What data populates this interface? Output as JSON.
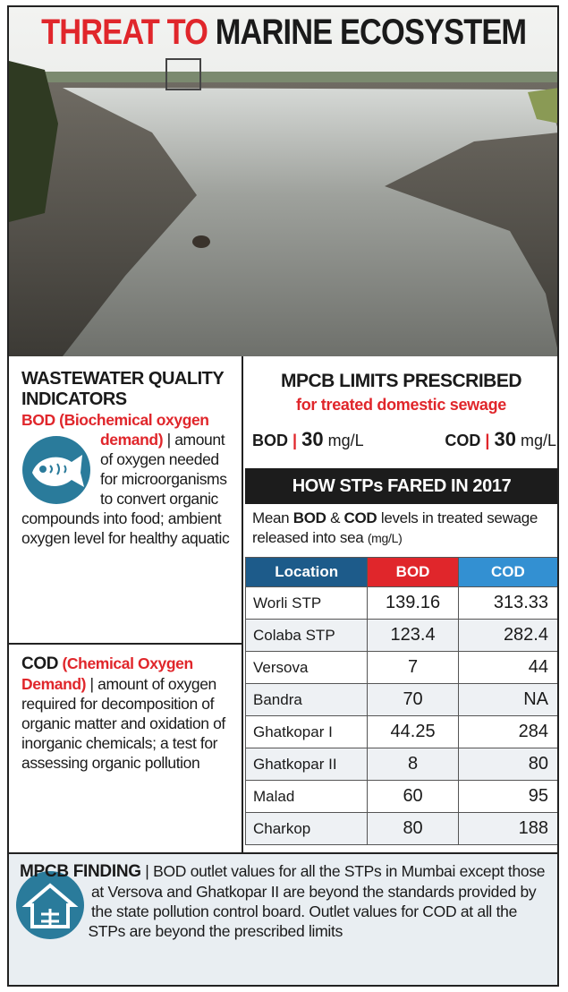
{
  "header": {
    "title_red": "THREAT TO",
    "title_black": "MARINE ECOSYSTEM"
  },
  "indicators": {
    "heading": "WASTEWATER QUALITY INDICATORS",
    "bod": {
      "term": "BOD (Biochemical oxygen demand)",
      "separator": "|",
      "description": "amount of oxygen needed for microorganisms to convert organic compounds into food; ambient oxygen level for healthy aquatic"
    },
    "cod": {
      "term": "COD",
      "term_full": "(Chemical Oxygen Demand)",
      "separator": "|",
      "description": "amount of oxygen required for decomposition of organic matter and oxidation of inorganic chemicals; a test for assessing organic pollution"
    }
  },
  "limits": {
    "heading": "MPCB LIMITS PRESCRIBED",
    "subheading": "for treated domestic sewage",
    "items": [
      {
        "label": "BOD",
        "separator": "|",
        "value": 30,
        "unit": "mg/L"
      },
      {
        "label": "COD",
        "separator": "|",
        "value": 30,
        "unit": "mg/L"
      }
    ]
  },
  "table": {
    "title": "HOW STPs FARED IN 2017",
    "caption": [
      {
        "text": "Mean ",
        "bold": false
      },
      {
        "text": "BOD",
        "bold": true
      },
      {
        "text": " & ",
        "bold": false
      },
      {
        "text": "COD",
        "bold": true
      },
      {
        "text": " levels in treated sewage released into sea ",
        "bold": false
      },
      {
        "text": "(mg/L)",
        "bold": false,
        "small": true
      }
    ],
    "columns": [
      {
        "name": "Location",
        "color": "#1d5b8a"
      },
      {
        "name": "BOD",
        "color": "#e0262b"
      },
      {
        "name": "COD",
        "color": "#3390d2"
      }
    ],
    "rows": [
      [
        "Worli STP",
        139.16,
        313.33
      ],
      [
        "Colaba STP",
        123.4,
        282.4
      ],
      [
        "Versova",
        7,
        44
      ],
      [
        "Bandra",
        70,
        "NA"
      ],
      [
        "Ghatkopar I",
        44.25,
        284
      ],
      [
        "Ghatkopar II",
        8,
        80
      ],
      [
        "Malad",
        60,
        95
      ],
      [
        "Charkop",
        80,
        188
      ]
    ]
  },
  "finding": {
    "heading": "MPCB FINDING",
    "separator": "|",
    "text": "BOD outlet values for all the STPs in Mumbai except those at Versova and Ghatkopar II are beyond the standards provided by the state pollution control board. Outlet values for COD at all the STPs are beyond the prescribed limits"
  }
}
